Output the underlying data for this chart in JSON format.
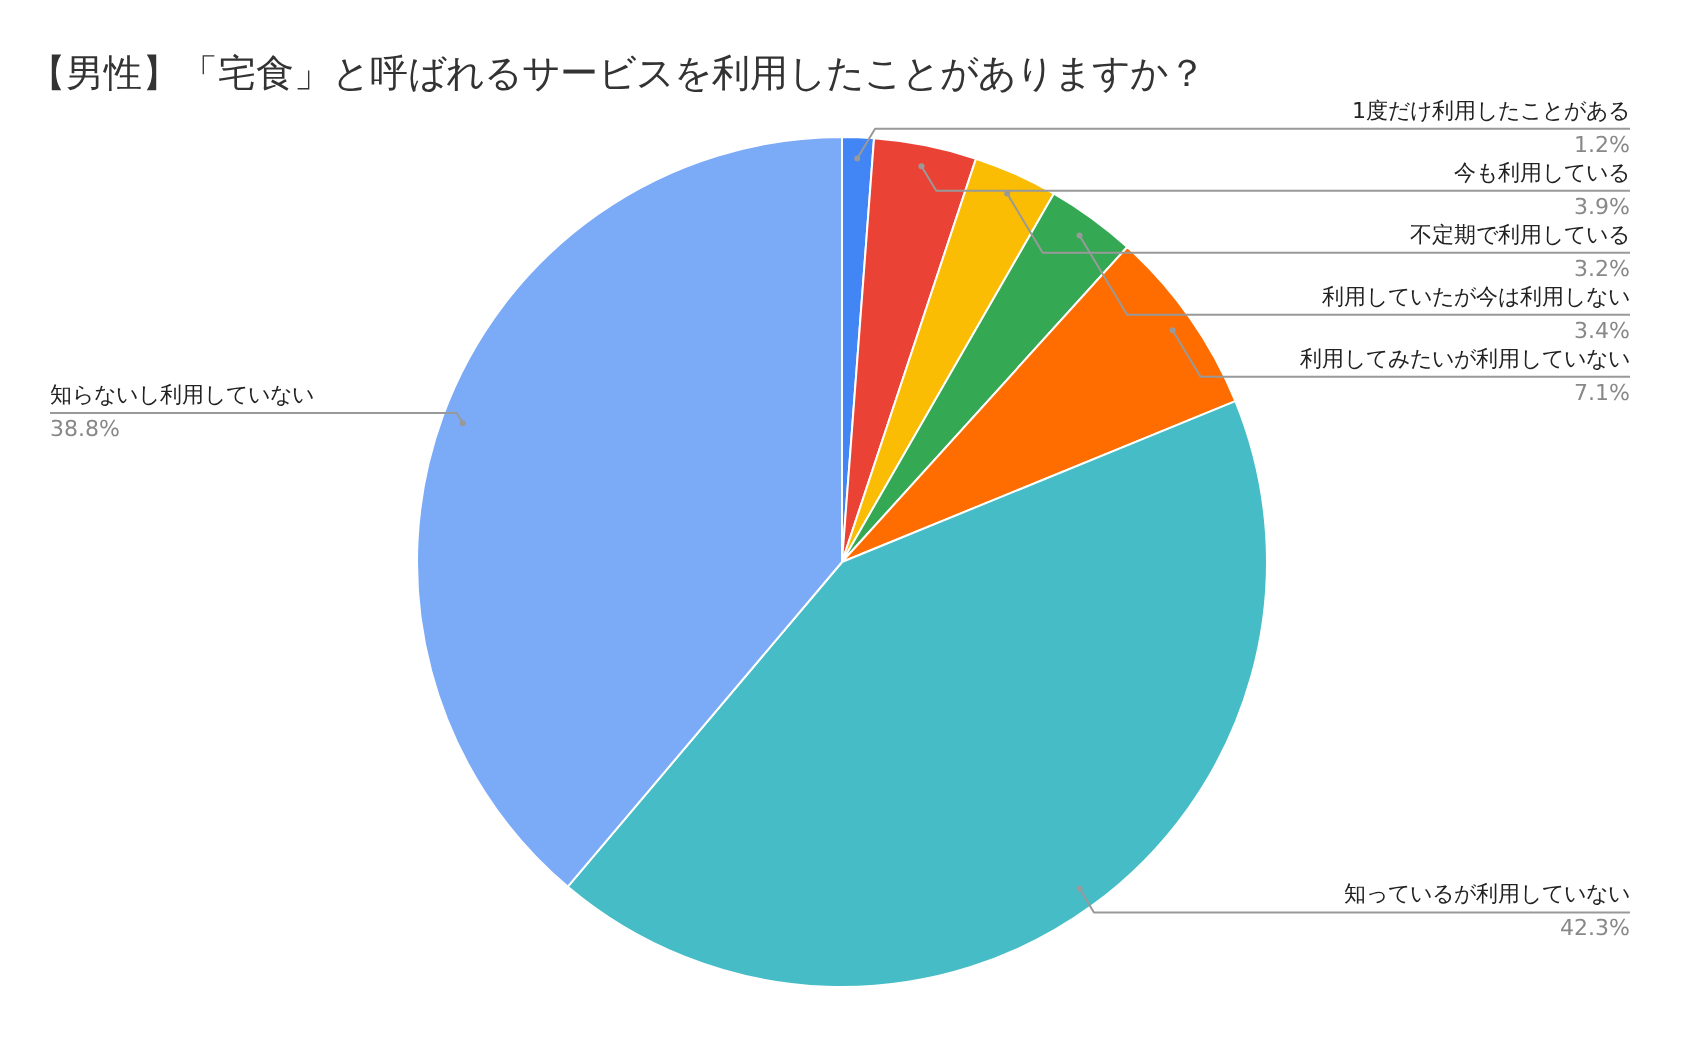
{
  "chart_data": {
    "type": "pie",
    "title": "【男性】「宅食」と呼ばれるサービスを利用したことがありますか？",
    "categories": [
      "1度だけ利用したことがある",
      "今も利用している",
      "不定期で利用している",
      "利用していたが今は利用しない",
      "利用してみたいが利用していない",
      "知っているが利用していない",
      "知らないし利用していない"
    ],
    "values": [
      1.2,
      3.9,
      3.2,
      3.4,
      7.1,
      42.3,
      38.8
    ],
    "colors": [
      "#4285f4",
      "#ea4335",
      "#fbbc04",
      "#34a853",
      "#ff6d01",
      "#46bdc6",
      "#7baaf7"
    ],
    "value_labels": [
      "1.2%",
      "3.9%",
      "3.2%",
      "3.4%",
      "7.1%",
      "42.3%",
      "38.8%"
    ],
    "legend": false
  }
}
